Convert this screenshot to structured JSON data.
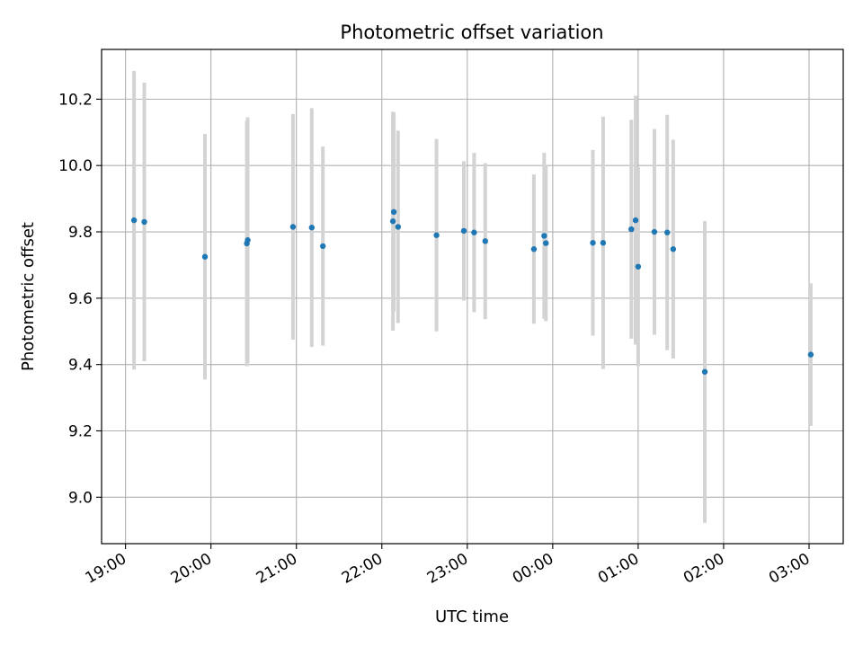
{
  "chart_data": {
    "type": "scatter",
    "title": "Photometric offset variation",
    "xlabel": "UTC time",
    "ylabel": "Photometric offset",
    "x_unit": "hours since 19:00 UTC",
    "xlim": [
      -0.28,
      8.4
    ],
    "ylim": [
      8.86,
      10.35
    ],
    "grid": true,
    "xticks": [
      {
        "value": 0,
        "label": "19:00"
      },
      {
        "value": 1,
        "label": "20:00"
      },
      {
        "value": 2,
        "label": "21:00"
      },
      {
        "value": 3,
        "label": "22:00"
      },
      {
        "value": 4,
        "label": "23:00"
      },
      {
        "value": 5,
        "label": "00:00"
      },
      {
        "value": 6,
        "label": "01:00"
      },
      {
        "value": 7,
        "label": "02:00"
      },
      {
        "value": 8,
        "label": "03:00"
      }
    ],
    "yticks": [
      {
        "value": 9.0,
        "label": "9.0"
      },
      {
        "value": 9.2,
        "label": "9.2"
      },
      {
        "value": 9.4,
        "label": "9.4"
      },
      {
        "value": 9.6,
        "label": "9.6"
      },
      {
        "value": 9.8,
        "label": "9.8"
      },
      {
        "value": 10.0,
        "label": "10.0"
      },
      {
        "value": 10.2,
        "label": "10.2"
      }
    ],
    "series": [
      {
        "name": "Photometric offset",
        "marker_color": "#1f77b4",
        "errorbar_color": "#d3d3d3",
        "points": [
          {
            "x": 0.1,
            "y": 9.835,
            "err": 0.45
          },
          {
            "x": 0.22,
            "y": 9.83,
            "err": 0.42
          },
          {
            "x": 0.93,
            "y": 9.725,
            "err": 0.37
          },
          {
            "x": 1.42,
            "y": 9.765,
            "err": 0.37
          },
          {
            "x": 1.43,
            "y": 9.775,
            "err": 0.37
          },
          {
            "x": 1.96,
            "y": 9.815,
            "err": 0.34
          },
          {
            "x": 2.18,
            "y": 9.813,
            "err": 0.36
          },
          {
            "x": 2.31,
            "y": 9.757,
            "err": 0.3
          },
          {
            "x": 3.13,
            "y": 9.832,
            "err": 0.33
          },
          {
            "x": 3.14,
            "y": 9.86,
            "err": 0.3
          },
          {
            "x": 3.19,
            "y": 9.815,
            "err": 0.29
          },
          {
            "x": 3.64,
            "y": 9.79,
            "err": 0.29
          },
          {
            "x": 3.96,
            "y": 9.803,
            "err": 0.21
          },
          {
            "x": 4.08,
            "y": 9.798,
            "err": 0.24
          },
          {
            "x": 4.21,
            "y": 9.772,
            "err": 0.235
          },
          {
            "x": 4.78,
            "y": 9.748,
            "err": 0.225
          },
          {
            "x": 4.9,
            "y": 9.788,
            "err": 0.25
          },
          {
            "x": 4.92,
            "y": 9.766,
            "err": 0.235
          },
          {
            "x": 5.47,
            "y": 9.767,
            "err": 0.28
          },
          {
            "x": 5.59,
            "y": 9.767,
            "err": 0.38
          },
          {
            "x": 5.92,
            "y": 9.808,
            "err": 0.33
          },
          {
            "x": 5.97,
            "y": 9.835,
            "err": 0.375
          },
          {
            "x": 6.0,
            "y": 9.695,
            "err": 0.3
          },
          {
            "x": 6.19,
            "y": 9.8,
            "err": 0.31
          },
          {
            "x": 6.34,
            "y": 9.798,
            "err": 0.355
          },
          {
            "x": 6.41,
            "y": 9.748,
            "err": 0.33
          },
          {
            "x": 6.78,
            "y": 9.378,
            "err": 0.455
          },
          {
            "x": 8.02,
            "y": 9.43,
            "err": 0.215
          }
        ]
      }
    ]
  }
}
